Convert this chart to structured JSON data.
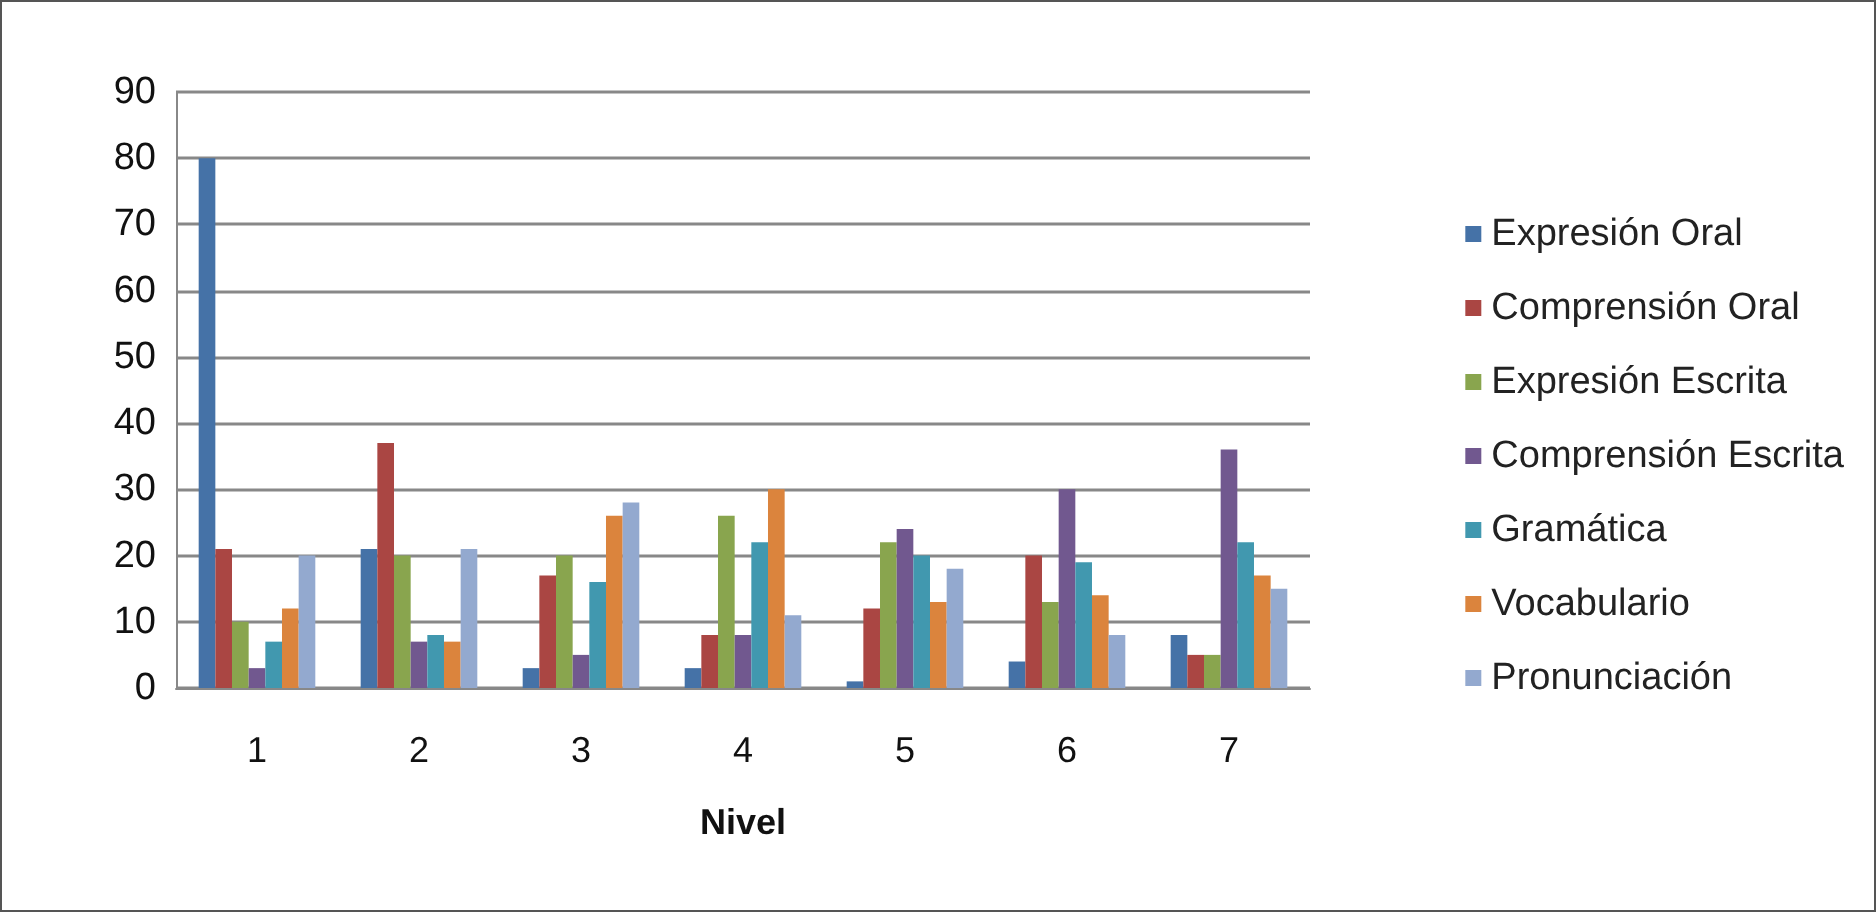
{
  "chart_data": {
    "type": "bar",
    "xlabel": "Nivel",
    "categories": [
      "1",
      "2",
      "3",
      "4",
      "5",
      "6",
      "7"
    ],
    "series": [
      {
        "name": "Expresión Oral",
        "color": "#4572a7",
        "values": [
          80,
          21,
          3,
          3,
          1,
          4,
          8
        ]
      },
      {
        "name": "Comprensión Oral",
        "color": "#aa4643",
        "values": [
          21,
          37,
          17,
          8,
          12,
          20,
          5
        ]
      },
      {
        "name": "Expresión Escrita",
        "color": "#89a54e",
        "values": [
          10,
          20,
          20,
          26,
          22,
          13,
          5
        ]
      },
      {
        "name": "Comprensión Escrita",
        "color": "#71588f",
        "values": [
          3,
          7,
          5,
          8,
          24,
          30,
          36
        ]
      },
      {
        "name": "Gramática",
        "color": "#4198af",
        "values": [
          7,
          8,
          16,
          22,
          20,
          19,
          22
        ]
      },
      {
        "name": "Vocabulario",
        "color": "#db843d",
        "values": [
          12,
          7,
          26,
          30,
          13,
          14,
          17
        ]
      },
      {
        "name": "Pronunciación",
        "color": "#93a9cf",
        "values": [
          20,
          21,
          28,
          11,
          18,
          8,
          15
        ]
      }
    ],
    "ylim": [
      0,
      90
    ],
    "yticks": [
      0,
      10,
      20,
      30,
      40,
      50,
      60,
      70,
      80,
      90
    ],
    "grid": "y",
    "legend": "right"
  }
}
